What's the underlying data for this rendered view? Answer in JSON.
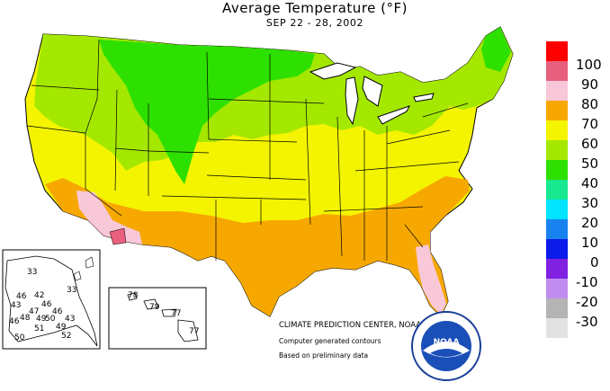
{
  "header": {
    "title": "Average Temperature (°F)",
    "subtitle": "SEP 22 - 28, 2002"
  },
  "legend": {
    "items": [
      {
        "label": "100",
        "color": "#ff0000"
      },
      {
        "label": "90",
        "color": "#e8607e"
      },
      {
        "label": "80",
        "color": "#f9c8d8"
      },
      {
        "label": "70",
        "color": "#f7a800"
      },
      {
        "label": "60",
        "color": "#f4f400"
      },
      {
        "label": "50",
        "color": "#a4e800"
      },
      {
        "label": "40",
        "color": "#2ee000"
      },
      {
        "label": "30",
        "color": "#18e890"
      },
      {
        "label": "20",
        "color": "#00e4ff"
      },
      {
        "label": "10",
        "color": "#1a82f0"
      },
      {
        "label": "0",
        "color": "#0a1ae8"
      },
      {
        "label": "-10",
        "color": "#8020e0"
      },
      {
        "label": "-20",
        "color": "#c08cf0"
      },
      {
        "label": "-30",
        "color": "#b4b4b4"
      },
      {
        "label": "",
        "color": "#e2e2e2"
      }
    ]
  },
  "credits": {
    "center": "CLIMATE PREDICTION CENTER, NOAA",
    "line2": "Computer generated contours",
    "line3": "Based on preliminary data",
    "logo_text": "NOAA"
  },
  "alaska": {
    "stations": [
      "33",
      "33",
      "42",
      "46",
      "46",
      "43",
      "46",
      "47",
      "49",
      "50",
      "43",
      "46",
      "48",
      "51",
      "49",
      "52",
      "50"
    ]
  },
  "hawaii": {
    "stations": [
      "78",
      "79",
      "77",
      "77"
    ]
  },
  "colors": {
    "land_bg": "#f4f400",
    "water": "#ffffff",
    "boundary": "#000000"
  }
}
